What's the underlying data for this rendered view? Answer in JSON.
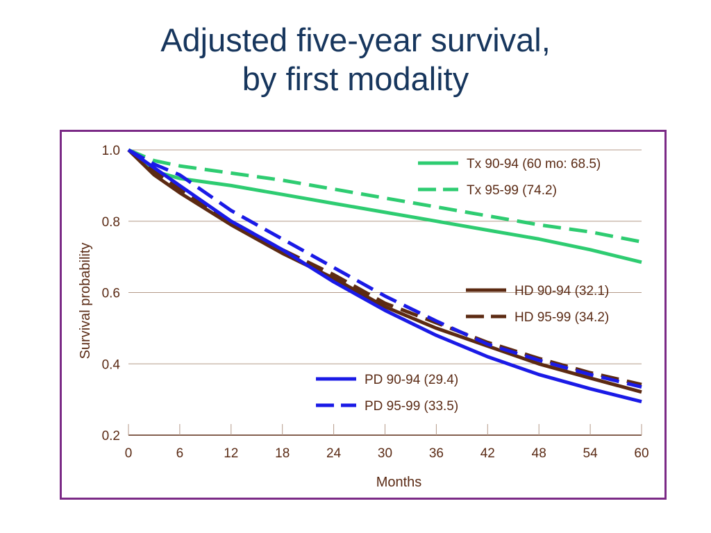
{
  "slide": {
    "title_line1": "Adjusted five-year survival,",
    "title_line2": "by first modality"
  },
  "colors": {
    "title": "#17365d",
    "frame": "#7b2a86",
    "grid": "#b49a88",
    "axis_text": "#5a2a14",
    "tx": "#2ecc71",
    "hd": "#5c2a12",
    "pd": "#1a1ae6"
  },
  "chart_data": {
    "type": "line",
    "xlabel": "Months",
    "ylabel": "Survival probability",
    "xlim": [
      0,
      60
    ],
    "ylim": [
      0.2,
      1.0
    ],
    "xticks": [
      0,
      6,
      12,
      18,
      24,
      30,
      36,
      42,
      48,
      54,
      60
    ],
    "yticks": [
      0.2,
      0.4,
      0.6,
      0.8,
      1.0
    ],
    "ytick_labels": [
      "0.2",
      "0.4",
      "0.6",
      "0.8",
      "1.0"
    ],
    "grid": "horizontal",
    "x": [
      0,
      3,
      6,
      12,
      18,
      24,
      30,
      36,
      42,
      48,
      54,
      60
    ],
    "series": [
      {
        "name": "Tx 90-94 (60 mo: 68.5)",
        "group": "tx",
        "dash": false,
        "values": [
          1.0,
          0.94,
          0.92,
          0.9,
          0.875,
          0.85,
          0.825,
          0.8,
          0.775,
          0.75,
          0.72,
          0.685
        ]
      },
      {
        "name": "Tx 95-99 (74.2)",
        "group": "tx",
        "dash": true,
        "values": [
          1.0,
          0.97,
          0.955,
          0.935,
          0.915,
          0.89,
          0.865,
          0.84,
          0.815,
          0.79,
          0.77,
          0.742
        ]
      },
      {
        "name": "HD 90-94 (32.1)",
        "group": "hd",
        "dash": false,
        "values": [
          1.0,
          0.93,
          0.88,
          0.79,
          0.71,
          0.64,
          0.56,
          0.5,
          0.45,
          0.4,
          0.36,
          0.321
        ]
      },
      {
        "name": "HD 95-99 (34.2)",
        "group": "hd",
        "dash": true,
        "values": [
          1.0,
          0.94,
          0.89,
          0.8,
          0.72,
          0.65,
          0.57,
          0.515,
          0.46,
          0.415,
          0.375,
          0.342
        ]
      },
      {
        "name": "PD 90-94 (29.4)",
        "group": "pd",
        "dash": false,
        "values": [
          1.0,
          0.95,
          0.9,
          0.8,
          0.72,
          0.63,
          0.55,
          0.48,
          0.42,
          0.37,
          0.33,
          0.294
        ]
      },
      {
        "name": "PD 95-99 (33.5)",
        "group": "pd",
        "dash": true,
        "values": [
          1.0,
          0.96,
          0.93,
          0.83,
          0.75,
          0.67,
          0.59,
          0.52,
          0.455,
          0.41,
          0.37,
          0.335
        ]
      }
    ],
    "legend_groups": [
      {
        "placement": "top-right",
        "labels": [
          "Tx 90-94 (60 mo: 68.5)",
          "Tx 95-99 (74.2)"
        ]
      },
      {
        "placement": "middle-right",
        "labels": [
          "HD 90-94 (32.1)",
          "HD 95-99 (34.2)"
        ]
      },
      {
        "placement": "lower-center",
        "labels": [
          "PD 90-94 (29.4)",
          "PD 95-99 (33.5)"
        ]
      }
    ]
  }
}
